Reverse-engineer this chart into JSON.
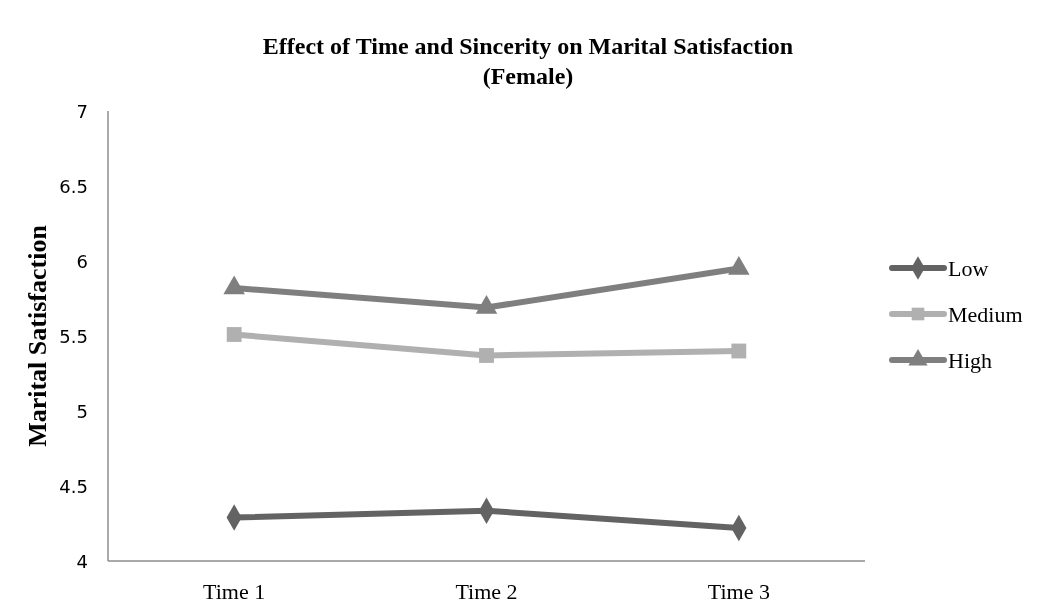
{
  "chart_data": {
    "type": "line",
    "title": "Effect of Time and Sincerity on Marital Satisfaction\n(Female)",
    "ylabel": "Marital Satisfaction",
    "categories": [
      "Time 1",
      "Time 2",
      "Time 3"
    ],
    "series": [
      {
        "name": "Low",
        "color": "#636363",
        "marker": "diamond",
        "values": [
          4.29,
          4.335,
          4.22
        ]
      },
      {
        "name": "Medium",
        "color": "#b0b0b0",
        "marker": "square",
        "values": [
          5.51,
          5.37,
          5.4
        ]
      },
      {
        "name": "High",
        "color": "#7f7f7f",
        "marker": "triangle",
        "values": [
          5.82,
          5.69,
          5.95
        ]
      }
    ],
    "ylim": [
      4,
      7
    ],
    "yticks": [
      4,
      4.5,
      5,
      5.5,
      6,
      6.5,
      7
    ],
    "grid": false,
    "legend": "right",
    "line_style": "solid"
  }
}
